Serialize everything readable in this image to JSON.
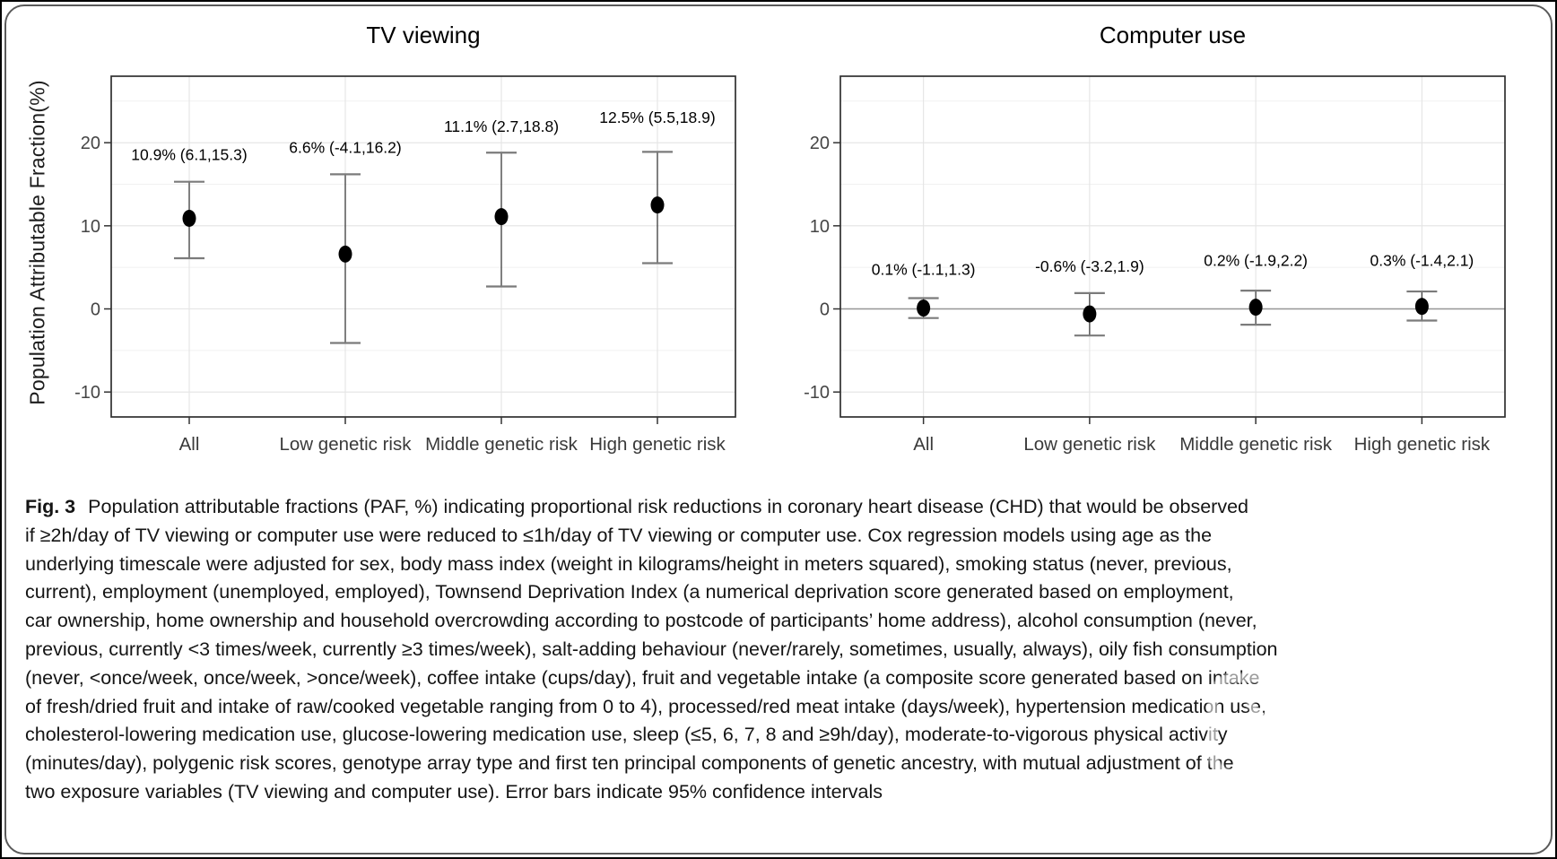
{
  "caption": {
    "fig_label": "Fig. 3",
    "lines": [
      "Population attributable fractions (PAF, %) indicating proportional risk reductions in coronary heart disease (CHD) that would be observed",
      "if ≥2h/day of TV viewing or computer use were reduced to ≤1h/day of TV viewing or computer use. Cox regression models using age as the",
      "underlying timescale were adjusted for sex, body mass index (weight in kilograms/height in meters squared), smoking status (never, previous,",
      "current), employment (unemployed, employed), Townsend Deprivation Index (a numerical deprivation score generated based on employment,",
      "car ownership, home ownership and household overcrowding according to postcode of participants’ home address), alcohol consumption (never,",
      "previous, currently <3 times/week, currently ≥3 times/week), salt-adding behaviour (never/rarely, sometimes, usually, always), oily fish consumption",
      "(never, <once/week, once/week, >once/week), coffee intake (cups/day), fruit and vegetable intake (a composite score generated based on intake",
      "of fresh/dried fruit and intake of raw/cooked vegetable ranging from 0 to 4), processed/red meat intake (days/week), hypertension medication use,",
      "cholesterol-lowering medication use, glucose-lowering medication use, sleep (≤5, 6, 7, 8 and ≥9h/day), moderate-to-vigorous physical activity",
      "(minutes/day), polygenic risk scores, genotype array type and first ten principal components of genetic ancestry, with mutual adjustment of the",
      "two exposure variables (TV viewing and computer use). Error bars indicate 95% confidence intervals"
    ]
  },
  "chart_data": [
    {
      "type": "scatter",
      "title": "TV viewing",
      "ylabel": "Population Attributable Fraction(%)",
      "categories": [
        "All",
        "Low genetic risk",
        "Middle genetic risk",
        "High genetic risk"
      ],
      "values": [
        10.9,
        6.6,
        11.1,
        12.5
      ],
      "ci_low": [
        6.1,
        -4.1,
        2.7,
        5.5
      ],
      "ci_high": [
        15.3,
        16.2,
        18.8,
        18.9
      ],
      "point_labels": [
        "10.9% (6.1,15.3)",
        "6.6% (-4.1,16.2)",
        "11.1% (2.7,18.8)",
        "12.5% (5.5,18.9)"
      ],
      "label_y": [
        17.9,
        18.8,
        21.3,
        22.4
      ],
      "yticks": [
        -10,
        0,
        10,
        20
      ],
      "ylim": [
        -13,
        28
      ],
      "grid": true,
      "legend": "none",
      "error_bars": "95% confidence intervals",
      "zero_line": false
    },
    {
      "type": "scatter",
      "title": "Computer use",
      "ylabel": "",
      "categories": [
        "All",
        "Low genetic risk",
        "Middle genetic risk",
        "High genetic risk"
      ],
      "values": [
        0.1,
        -0.6,
        0.2,
        0.3
      ],
      "ci_low": [
        -1.1,
        -3.2,
        -1.9,
        -1.4
      ],
      "ci_high": [
        1.3,
        1.9,
        2.2,
        2.1
      ],
      "point_labels": [
        "0.1% (-1.1,1.3)",
        "-0.6% (-3.2,1.9)",
        "0.2% (-1.9,2.2)",
        "0.3% (-1.4,2.1)"
      ],
      "label_y": [
        4.1,
        4.5,
        5.2,
        5.2
      ],
      "yticks": [
        -10,
        0,
        10,
        20
      ],
      "ylim": [
        -13,
        28
      ],
      "grid": true,
      "legend": "none",
      "error_bars": "95% confidence intervals",
      "zero_line": true
    }
  ],
  "colors": {
    "point": "#000000",
    "error_bar_line": "#3c3c3c",
    "error_bar_cap": "#7b7b7b",
    "grid_major": "#e4e4e4",
    "grid_minor": "#f1f1f1",
    "panel_border": "#2f2f2f",
    "zero_line": "#969696"
  },
  "watermark": {
    "icon": "cjk-logo-watermark-icon"
  }
}
